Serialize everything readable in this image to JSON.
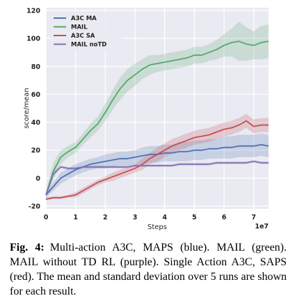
{
  "chart_data": {
    "type": "line",
    "title": "",
    "xlabel": "Steps",
    "ylabel": "score/mean",
    "x_multiplier_label": "1e7",
    "xlim": [
      0,
      7.5
    ],
    "ylim": [
      -22,
      122
    ],
    "xticks": [
      0,
      1,
      2,
      3,
      4,
      5,
      6,
      7
    ],
    "yticks": [
      -20,
      0,
      20,
      40,
      60,
      80,
      100,
      120
    ],
    "grid": true,
    "legend_position": "top-left",
    "series": [
      {
        "name": "A3C MA",
        "color": "#4c72b0",
        "x": [
          0,
          0.25,
          0.5,
          0.75,
          1.0,
          1.25,
          1.5,
          1.75,
          2.0,
          2.25,
          2.5,
          2.75,
          3.0,
          3.25,
          3.5,
          3.75,
          4.0,
          4.25,
          4.5,
          4.75,
          5.0,
          5.25,
          5.5,
          5.75,
          6.0,
          6.25,
          6.5,
          6.75,
          7.0,
          7.25,
          7.5
        ],
        "y": [
          -12,
          -6,
          0,
          3,
          6,
          8,
          10,
          11,
          12,
          13,
          14,
          14,
          15,
          16,
          17,
          17,
          18,
          18,
          19,
          19,
          20,
          20,
          21,
          21,
          22,
          22,
          23,
          23,
          23,
          24,
          23
        ],
        "std": [
          2,
          3,
          4,
          4,
          4,
          4,
          4,
          4,
          5,
          5,
          5,
          5,
          5,
          6,
          6,
          6,
          6,
          6,
          7,
          7,
          7,
          7,
          7,
          7,
          8,
          8,
          8,
          8,
          8,
          8,
          8
        ]
      },
      {
        "name": "MAIL",
        "color": "#55a868",
        "x": [
          0,
          0.25,
          0.5,
          0.75,
          1.0,
          1.25,
          1.5,
          1.75,
          2.0,
          2.25,
          2.5,
          2.75,
          3.0,
          3.25,
          3.5,
          3.75,
          4.0,
          4.25,
          4.5,
          4.75,
          5.0,
          5.25,
          5.5,
          5.75,
          6.0,
          6.25,
          6.5,
          6.75,
          7.0,
          7.25,
          7.5
        ],
        "y": [
          -12,
          5,
          15,
          19,
          22,
          28,
          34,
          39,
          47,
          56,
          64,
          70,
          74,
          78,
          81,
          82,
          83,
          84,
          85,
          86,
          88,
          88,
          90,
          92,
          95,
          97,
          98,
          96,
          95,
          97,
          98
        ],
        "std": [
          3,
          6,
          5,
          4,
          4,
          4,
          5,
          5,
          6,
          7,
          8,
          8,
          8,
          7,
          7,
          6,
          6,
          6,
          6,
          6,
          6,
          6,
          6,
          7,
          8,
          10,
          14,
          12,
          10,
          12,
          12
        ]
      },
      {
        "name": "A3C SA",
        "color": "#c44e52",
        "x": [
          0,
          0.25,
          0.5,
          0.75,
          1.0,
          1.25,
          1.5,
          1.75,
          2.0,
          2.25,
          2.5,
          2.75,
          3.0,
          3.25,
          3.5,
          3.75,
          4.0,
          4.25,
          4.5,
          4.75,
          5.0,
          5.25,
          5.5,
          5.75,
          6.0,
          6.25,
          6.5,
          6.75,
          7.0,
          7.25,
          7.5
        ],
        "y": [
          -15,
          -14,
          -14,
          -13,
          -12,
          -9,
          -6,
          -3,
          -1,
          1,
          3,
          5,
          7,
          10,
          14,
          17,
          20,
          23,
          25,
          27,
          29,
          30,
          31,
          33,
          35,
          36,
          38,
          41,
          37,
          38,
          38
        ],
        "std": [
          1,
          1,
          1,
          1,
          2,
          2,
          2,
          2,
          2,
          3,
          3,
          3,
          3,
          4,
          4,
          5,
          5,
          5,
          5,
          5,
          5,
          5,
          5,
          5,
          5,
          5,
          5,
          5,
          5,
          5,
          5
        ]
      },
      {
        "name": "MAIL noTD",
        "color": "#8172b2",
        "x": [
          0,
          0.25,
          0.5,
          0.75,
          1.0,
          1.25,
          1.5,
          1.75,
          2.0,
          2.25,
          2.5,
          2.75,
          3.0,
          3.25,
          3.5,
          3.75,
          4.0,
          4.25,
          4.5,
          4.75,
          5.0,
          5.25,
          5.5,
          5.75,
          6.0,
          6.25,
          6.5,
          6.75,
          7.0,
          7.25,
          7.5
        ],
        "y": [
          -12,
          3,
          8,
          7,
          7,
          8,
          8,
          8,
          8,
          8,
          8,
          8,
          9,
          9,
          9,
          9,
          9,
          9,
          10,
          10,
          10,
          10,
          10,
          11,
          11,
          11,
          11,
          11,
          12,
          11,
          11
        ],
        "std": [
          1,
          2,
          1,
          1,
          1,
          1,
          1,
          1,
          1,
          1,
          1,
          1,
          1,
          1,
          1,
          1,
          1,
          1,
          1,
          1,
          1,
          1,
          1,
          1,
          1,
          1,
          1,
          1,
          1,
          1,
          1
        ]
      }
    ]
  },
  "caption": {
    "label": "Fig. 4:",
    "text": "Multi-action A3C, MAPS (blue). MAIL (green). MAIL without TD RL (purple). Single Action A3C, SAPS (red). The mean and standard deviation over 5 runs are shown for each result."
  }
}
